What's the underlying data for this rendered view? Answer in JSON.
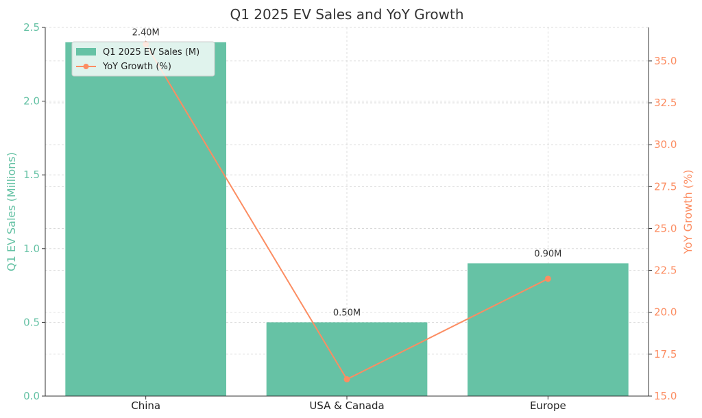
{
  "chart_data": {
    "type": "bar",
    "title": "Q1 2025 EV Sales and YoY Growth",
    "categories": [
      "China",
      "USA & Canada",
      "Europe"
    ],
    "series": [
      {
        "name": "Q1 2025 EV Sales (M)",
        "type": "bar",
        "axis": "left",
        "values": [
          2.4,
          0.5,
          0.9
        ],
        "labels": [
          "2.40M",
          "0.50M",
          "0.90M"
        ],
        "color": "#66c2a5"
      },
      {
        "name": "YoY Growth (%)",
        "type": "line",
        "axis": "right",
        "values": [
          36,
          16,
          22
        ],
        "color": "#fc8d62"
      }
    ],
    "y_left": {
      "label": "Q1 EV Sales (Millions)",
      "ylim": [
        0,
        2.5
      ],
      "ticks": [
        "0.0",
        "0.5",
        "1.0",
        "1.5",
        "2.0",
        "2.5"
      ],
      "color": "#66c2a5"
    },
    "y_right": {
      "label": "YoY Growth (%)",
      "ylim": [
        15,
        37
      ],
      "ticks": [
        "15.0",
        "17.5",
        "20.0",
        "22.5",
        "25.0",
        "27.5",
        "30.0",
        "32.5",
        "35.0"
      ],
      "color": "#fc8d62"
    },
    "grid": true,
    "legend": "upper-left"
  }
}
